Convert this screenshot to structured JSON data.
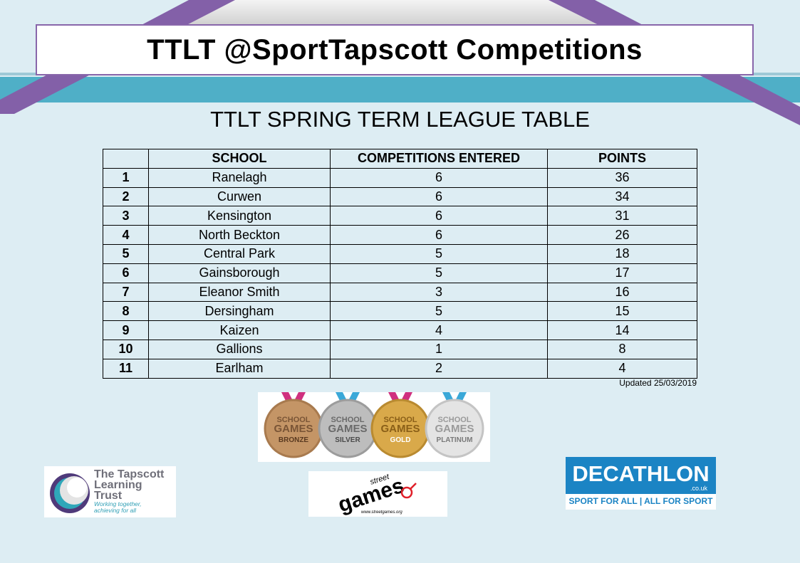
{
  "header": {
    "title": "TTLT @SportTapscott Competitions"
  },
  "table_title": "TTLT SPRING TERM LEAGUE TABLE",
  "columns": [
    "",
    "SCHOOL",
    "COMPETITIONS  ENTERED",
    "POINTS"
  ],
  "rows": [
    {
      "pos": "1",
      "school": "Ranelagh",
      "entered": "6",
      "points": "36"
    },
    {
      "pos": "2",
      "school": "Curwen",
      "entered": "6",
      "points": "34"
    },
    {
      "pos": "3",
      "school": "Kensington",
      "entered": "6",
      "points": "31"
    },
    {
      "pos": "4",
      "school": "North Beckton",
      "entered": "6",
      "points": "26"
    },
    {
      "pos": "5",
      "school": "Central  Park",
      "entered": "5",
      "points": "18"
    },
    {
      "pos": "6",
      "school": "Gainsborough",
      "entered": "5",
      "points": "17"
    },
    {
      "pos": "7",
      "school": "Eleanor  Smith",
      "entered": "3",
      "points": "16"
    },
    {
      "pos": "8",
      "school": "Dersingham",
      "entered": "5",
      "points": "15"
    },
    {
      "pos": "9",
      "school": "Kaizen",
      "entered": "4",
      "points": "14"
    },
    {
      "pos": "10",
      "school": "Gallions",
      "entered": "1",
      "points": "8"
    },
    {
      "pos": "11",
      "school": "Earlham",
      "entered": "2",
      "points": "4"
    }
  ],
  "updated": "Updated 25/03/2019",
  "medals": [
    {
      "top": "SCHOOL",
      "mid": "GAMES",
      "level": "BRONZE",
      "color": "#c49566",
      "ribbon": "#d0307f"
    },
    {
      "top": "SCHOOL",
      "mid": "GAMES",
      "level": "SILVER",
      "color": "#bdbdbd",
      "ribbon": "#3aa8d8"
    },
    {
      "top": "SCHOOL",
      "mid": "GAMES",
      "level": "GOLD",
      "color": "#d9a94a",
      "ribbon": "#d0307f"
    },
    {
      "top": "SCHOOL",
      "mid": "GAMES",
      "level": "PLATINUM",
      "color": "#e4e4e4",
      "ribbon": "#3aa8d8"
    }
  ],
  "logos": {
    "trust": {
      "name_lines": [
        "The Tapscott",
        "Learning",
        "Trust"
      ],
      "tagline_lines": [
        "Working together,",
        "achieving for all"
      ]
    },
    "streetgames": {
      "text": "games",
      "top": "street",
      "url": "www.streetgames.org"
    },
    "decathlon": {
      "wordmark": "DECATHLON",
      "domain": ".co.uk",
      "slogan": "SPORT FOR ALL | ALL FOR SPORT"
    }
  },
  "colors": {
    "background": "#ddedf3",
    "band_teal": "#4fafc7",
    "band_purple": "#8360a8",
    "title_border": "#8866aa",
    "decathlon_blue": "#1b84c4"
  }
}
